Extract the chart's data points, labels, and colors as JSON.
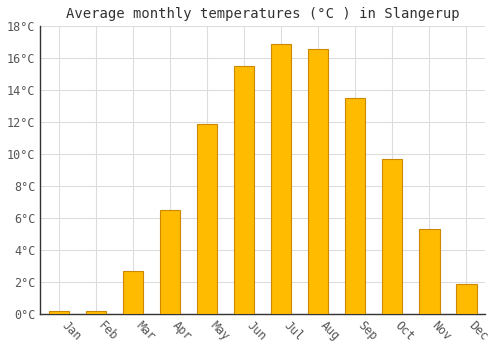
{
  "title": "Average monthly temperatures (°C ) in Slangerup",
  "months": [
    "Jan",
    "Feb",
    "Mar",
    "Apr",
    "May",
    "Jun",
    "Jul",
    "Aug",
    "Sep",
    "Oct",
    "Nov",
    "Dec"
  ],
  "values": [
    0.2,
    0.2,
    2.7,
    6.5,
    11.9,
    15.5,
    16.9,
    16.6,
    13.5,
    9.7,
    5.3,
    1.9
  ],
  "bar_color": "#FFBB00",
  "bar_edge_color": "#CC8800",
  "background_color": "#ffffff",
  "grid_color": "#dddddd",
  "ylim": [
    0,
    18
  ],
  "yticks": [
    0,
    2,
    4,
    6,
    8,
    10,
    12,
    14,
    16,
    18
  ],
  "ytick_labels": [
    "0°C",
    "2°C",
    "4°C",
    "6°C",
    "8°C",
    "10°C",
    "12°C",
    "14°C",
    "16°C",
    "18°C"
  ],
  "title_fontsize": 10,
  "tick_fontsize": 8.5,
  "font_family": "monospace",
  "bar_width": 0.55
}
